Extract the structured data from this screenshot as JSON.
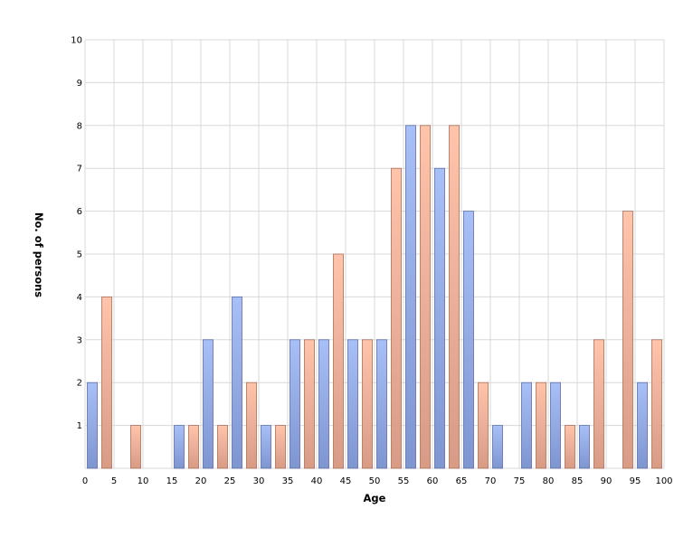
{
  "chart_data": {
    "type": "bar",
    "title": "",
    "xlabel": "Age",
    "ylabel": "No. of persons",
    "xlim": [
      0,
      100
    ],
    "ylim": [
      0,
      10
    ],
    "x_ticks": [
      0,
      5,
      10,
      15,
      20,
      25,
      30,
      35,
      40,
      45,
      50,
      55,
      60,
      65,
      70,
      75,
      80,
      85,
      90,
      95,
      100
    ],
    "y_ticks": [
      1,
      2,
      3,
      4,
      5,
      6,
      7,
      8,
      9,
      10
    ],
    "grid": true,
    "legend": "none",
    "colors": {
      "blue_top": "#a8bff7",
      "blue_bottom": "#7f95d0",
      "blue_stroke": "#5a6fa8",
      "salmon_top": "#ffc4aa",
      "salmon_bottom": "#d99a86",
      "salmon_stroke": "#a8705e",
      "grid": "#d8d8d8"
    },
    "series": [
      {
        "color": "blue",
        "points": [
          {
            "x": 1.25,
            "y": 2
          },
          {
            "x": 16.25,
            "y": 1
          },
          {
            "x": 21.25,
            "y": 3
          },
          {
            "x": 26.25,
            "y": 4
          },
          {
            "x": 31.25,
            "y": 1
          },
          {
            "x": 36.25,
            "y": 3
          },
          {
            "x": 41.25,
            "y": 3
          },
          {
            "x": 46.25,
            "y": 3
          },
          {
            "x": 51.25,
            "y": 3
          },
          {
            "x": 56.25,
            "y": 8
          },
          {
            "x": 61.25,
            "y": 7
          },
          {
            "x": 66.25,
            "y": 6
          },
          {
            "x": 71.25,
            "y": 1
          },
          {
            "x": 76.25,
            "y": 2
          },
          {
            "x": 81.25,
            "y": 2
          },
          {
            "x": 86.25,
            "y": 1
          },
          {
            "x": 96.25,
            "y": 2
          }
        ]
      },
      {
        "color": "salmon",
        "points": [
          {
            "x": 3.75,
            "y": 4
          },
          {
            "x": 8.75,
            "y": 1
          },
          {
            "x": 18.75,
            "y": 1
          },
          {
            "x": 23.75,
            "y": 1
          },
          {
            "x": 28.75,
            "y": 2
          },
          {
            "x": 33.75,
            "y": 1
          },
          {
            "x": 38.75,
            "y": 3
          },
          {
            "x": 43.75,
            "y": 5
          },
          {
            "x": 48.75,
            "y": 3
          },
          {
            "x": 53.75,
            "y": 7
          },
          {
            "x": 58.75,
            "y": 8
          },
          {
            "x": 63.75,
            "y": 8
          },
          {
            "x": 68.75,
            "y": 2
          },
          {
            "x": 78.75,
            "y": 2
          },
          {
            "x": 83.75,
            "y": 1
          },
          {
            "x": 88.75,
            "y": 3
          },
          {
            "x": 93.75,
            "y": 6
          },
          {
            "x": 98.75,
            "y": 3
          }
        ]
      }
    ]
  }
}
